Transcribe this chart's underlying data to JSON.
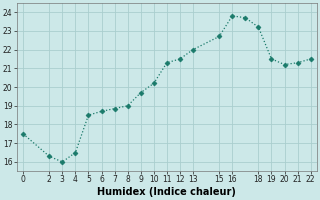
{
  "x": [
    0,
    2,
    3,
    4,
    5,
    6,
    7,
    8,
    9,
    10,
    11,
    12,
    13,
    15,
    16,
    17,
    18,
    19,
    20,
    21,
    22
  ],
  "y": [
    17.5,
    16.3,
    16.0,
    16.5,
    18.5,
    18.7,
    18.85,
    19.0,
    19.7,
    20.2,
    21.3,
    21.5,
    22.0,
    22.7,
    23.8,
    23.7,
    23.2,
    21.5,
    21.2,
    21.3,
    21.5
  ],
  "xlabel": "Humidex (Indice chaleur)",
  "xlim": [
    -0.5,
    22.5
  ],
  "ylim": [
    15.5,
    24.5
  ],
  "xticks": [
    0,
    2,
    3,
    4,
    5,
    6,
    7,
    8,
    9,
    10,
    11,
    12,
    13,
    15,
    16,
    18,
    19,
    20,
    21,
    22
  ],
  "xtick_labels": [
    "0",
    "2",
    "3",
    "4",
    "5",
    "6",
    "7",
    "8",
    "9",
    "10",
    "11",
    "12",
    "13",
    "15",
    "16",
    "18",
    "19",
    "20",
    "21",
    "22"
  ],
  "yticks": [
    16,
    17,
    18,
    19,
    20,
    21,
    22,
    23,
    24
  ],
  "line_color": "#1a7a6a",
  "marker": "D",
  "marker_size": 2.5,
  "bg_color": "#cce8e8",
  "grid_color": "#aacece",
  "fig_bg": "#cce8e8",
  "tick_fontsize": 5.5,
  "xlabel_fontsize": 7
}
